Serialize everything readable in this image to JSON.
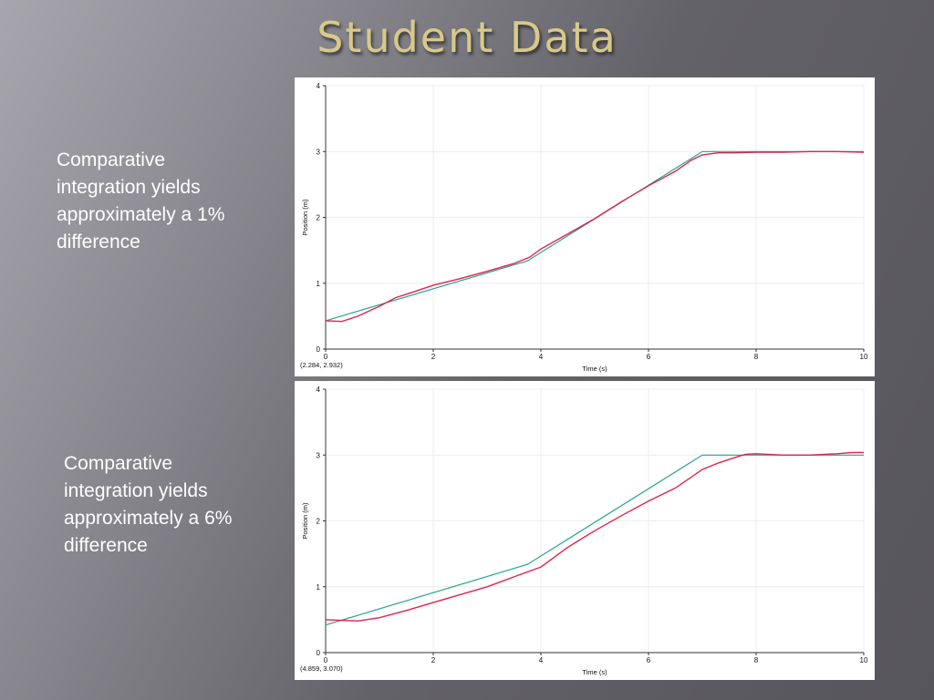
{
  "slide": {
    "title": "Student Data",
    "caption_1": "Comparative integration yields approximately a 1% difference",
    "caption_2": "Comparative integration yields approximately a 6% difference"
  },
  "colors": {
    "model_line": "#2aa38f",
    "data_line": "#e0234c",
    "title": "#d8c98a"
  },
  "chart_data": [
    {
      "type": "line",
      "xlabel": "Time (s)",
      "ylabel": "Position (m)",
      "xlim": [
        0,
        10
      ],
      "ylim": [
        0,
        4
      ],
      "xticks": [
        0,
        2,
        4,
        6,
        8,
        10
      ],
      "yticks": [
        0,
        1,
        2,
        3,
        4
      ],
      "grid": true,
      "readout": "(2.284, 2.932)",
      "series": [
        {
          "x": [
            0,
            3.75,
            7.0,
            10.0
          ],
          "y": [
            0.43,
            1.34,
            3.0,
            3.0
          ]
        },
        {
          "x": [
            0,
            0.3,
            0.6,
            1.0,
            1.3,
            1.6,
            2.0,
            2.5,
            3.0,
            3.5,
            3.8,
            4.0,
            4.5,
            5.0,
            5.5,
            6.0,
            6.5,
            6.8,
            7.0,
            7.3,
            7.6,
            8.0,
            8.5,
            9.0,
            9.5,
            10.0
          ],
          "y": [
            0.43,
            0.42,
            0.5,
            0.65,
            0.78,
            0.86,
            0.97,
            1.07,
            1.18,
            1.3,
            1.4,
            1.52,
            1.75,
            1.98,
            2.24,
            2.48,
            2.7,
            2.87,
            2.95,
            2.98,
            2.98,
            2.99,
            2.99,
            3.0,
            3.0,
            2.99
          ]
        }
      ]
    },
    {
      "type": "line",
      "xlabel": "Time (s)",
      "ylabel": "Position (m)",
      "xlim": [
        0,
        10
      ],
      "ylim": [
        0,
        4
      ],
      "xticks": [
        0,
        2,
        4,
        6,
        8,
        10
      ],
      "yticks": [
        0,
        1,
        2,
        3,
        4
      ],
      "grid": true,
      "readout": "(4.859, 3.070)",
      "series": [
        {
          "x": [
            0,
            3.75,
            7.0,
            10.0
          ],
          "y": [
            0.42,
            1.34,
            3.0,
            3.0
          ]
        },
        {
          "x": [
            0,
            0.3,
            0.6,
            1.0,
            1.5,
            2.0,
            2.5,
            3.0,
            3.5,
            4.0,
            4.5,
            5.0,
            5.5,
            6.0,
            6.5,
            7.0,
            7.3,
            7.6,
            7.8,
            8.0,
            8.5,
            9.0,
            9.5,
            9.8,
            10.0
          ],
          "y": [
            0.5,
            0.49,
            0.48,
            0.53,
            0.64,
            0.76,
            0.88,
            1.0,
            1.15,
            1.3,
            1.6,
            1.85,
            2.08,
            2.3,
            2.5,
            2.78,
            2.88,
            2.96,
            3.01,
            3.02,
            3.0,
            3.0,
            3.02,
            3.04,
            3.04
          ]
        }
      ]
    }
  ]
}
